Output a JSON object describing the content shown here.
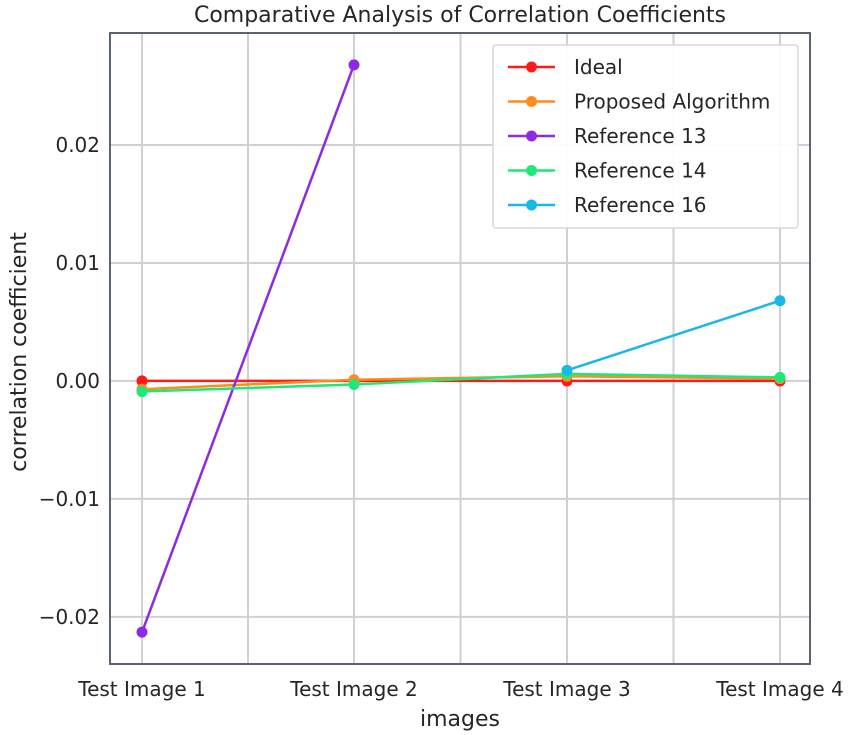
{
  "chart_data": {
    "type": "line",
    "title": "Comparative Analysis of Correlation Coefficients",
    "xlabel": "images",
    "ylabel": "correlation coefficient",
    "categories": [
      "Test Image 1",
      "Test Image 2",
      "Test Image 3",
      "Test Image 4"
    ],
    "ylim": [
      -0.024,
      0.0295
    ],
    "yticks": [
      {
        "value": 0.02,
        "label": "0.02"
      },
      {
        "value": 0.01,
        "label": "0.01"
      },
      {
        "value": 0.0,
        "label": "0.00"
      },
      {
        "value": -0.01,
        "label": "−0.01"
      },
      {
        "value": -0.02,
        "label": "−0.02"
      }
    ],
    "grid": true,
    "legend_position": "top-right",
    "series": [
      {
        "name": "Ideal",
        "color": "#ff1a1a",
        "values": [
          0.0,
          0.0,
          0.0,
          0.0
        ]
      },
      {
        "name": "Proposed Algorithm",
        "color": "#ff8c1a",
        "values": [
          -0.0007,
          0.0001,
          0.0004,
          0.0002
        ]
      },
      {
        "name": "Reference 13",
        "color": "#8c2be2",
        "values": [
          -0.0213,
          0.0268,
          null,
          null
        ]
      },
      {
        "name": "Reference 14",
        "color": "#1ee87a",
        "values": [
          -0.0009,
          -0.0003,
          0.0006,
          0.0003
        ]
      },
      {
        "name": "Reference 16",
        "color": "#1ab8e8",
        "values": [
          null,
          null,
          0.0009,
          0.0068
        ]
      }
    ]
  }
}
